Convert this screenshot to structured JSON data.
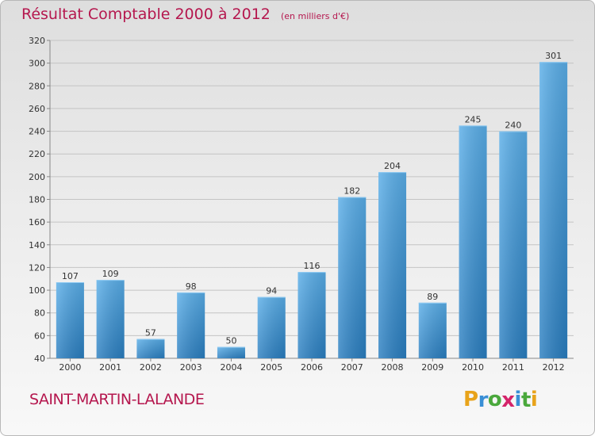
{
  "chart_data": {
    "type": "bar",
    "title": "Résultat Comptable 2000 à 2012",
    "subtitle": "(en milliers d'€)",
    "categories": [
      "2000",
      "2001",
      "2002",
      "2003",
      "2004",
      "2005",
      "2006",
      "2007",
      "2008",
      "2009",
      "2010",
      "2011",
      "2012"
    ],
    "values": [
      107,
      109,
      57,
      98,
      50,
      94,
      116,
      182,
      204,
      89,
      245,
      240,
      301
    ],
    "ylim": [
      40,
      320
    ],
    "yticks": [
      40,
      60,
      80,
      100,
      120,
      140,
      160,
      180,
      200,
      220,
      240,
      260,
      280,
      300,
      320
    ],
    "grid": true,
    "bar_color_top": "#5aaee8",
    "bar_color_bottom": "#2a7ec0"
  },
  "place_name": "SAINT-MARTIN-LALANDE",
  "logo": {
    "letters": [
      "P",
      "r",
      "o",
      "x",
      "i",
      "t",
      "i"
    ],
    "colors": [
      "#e8a31a",
      "#3a8fd6",
      "#4aa83c",
      "#d4246a",
      "#3a8fd6",
      "#4aa83c",
      "#e8a31a"
    ]
  },
  "colors": {
    "accent": "#b5174e"
  }
}
